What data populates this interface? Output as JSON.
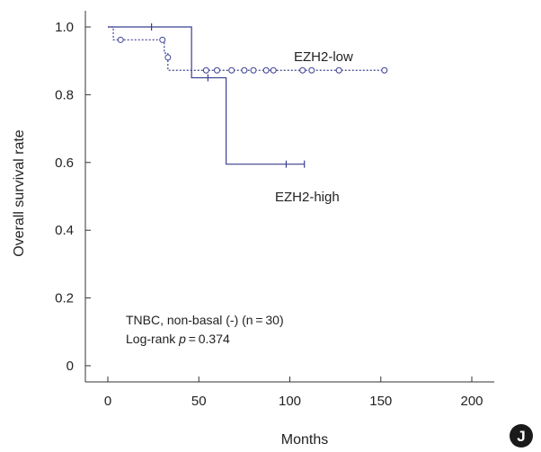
{
  "chart_data": {
    "type": "line",
    "subtype": "kaplan-meier step curve",
    "xlabel": "Months",
    "ylabel": "Overall survival rate",
    "xlim": [
      0,
      200
    ],
    "ylim": [
      0,
      1.0
    ],
    "x_ticks": [
      "0",
      "50",
      "100",
      "150",
      "200"
    ],
    "y_ticks": [
      "0",
      "0.2",
      "0.4",
      "0.6",
      "0.8",
      "1.0"
    ],
    "grid": false,
    "annotations": [
      {
        "text": "TNBC, non-basal (-) (n = 30)"
      },
      {
        "prefix": "Log-rank ",
        "italic": "p",
        "suffix": " = 0.374"
      }
    ],
    "panel_letter": "J",
    "series": [
      {
        "name": "EZH2-low",
        "line_style": "dotted",
        "color": "#3a3f8f",
        "marker": "circle",
        "steps": [
          [
            0,
            1.0
          ],
          [
            3,
            0.962
          ],
          [
            31,
            0.923
          ],
          [
            33,
            0.872
          ],
          [
            153,
            0.872
          ]
        ],
        "censored": [
          [
            7,
            0.962
          ],
          [
            30,
            0.962
          ],
          [
            33,
            0.91
          ],
          [
            54,
            0.872
          ],
          [
            60,
            0.872
          ],
          [
            68,
            0.872
          ],
          [
            75,
            0.872
          ],
          [
            80,
            0.872
          ],
          [
            87,
            0.872
          ],
          [
            91,
            0.872
          ],
          [
            107,
            0.872
          ],
          [
            112,
            0.872
          ],
          [
            127,
            0.872
          ],
          [
            152,
            0.872
          ]
        ]
      },
      {
        "name": "EZH2-high",
        "line_style": "solid",
        "color": "#3a3f8f",
        "marker": "tick",
        "steps": [
          [
            0,
            1.0
          ],
          [
            46,
            0.85
          ],
          [
            65,
            0.595
          ],
          [
            108,
            0.595
          ]
        ],
        "censored": [
          [
            24,
            1.0
          ],
          [
            55,
            0.85
          ],
          [
            98,
            0.595
          ],
          [
            108,
            0.595
          ]
        ]
      }
    ]
  }
}
